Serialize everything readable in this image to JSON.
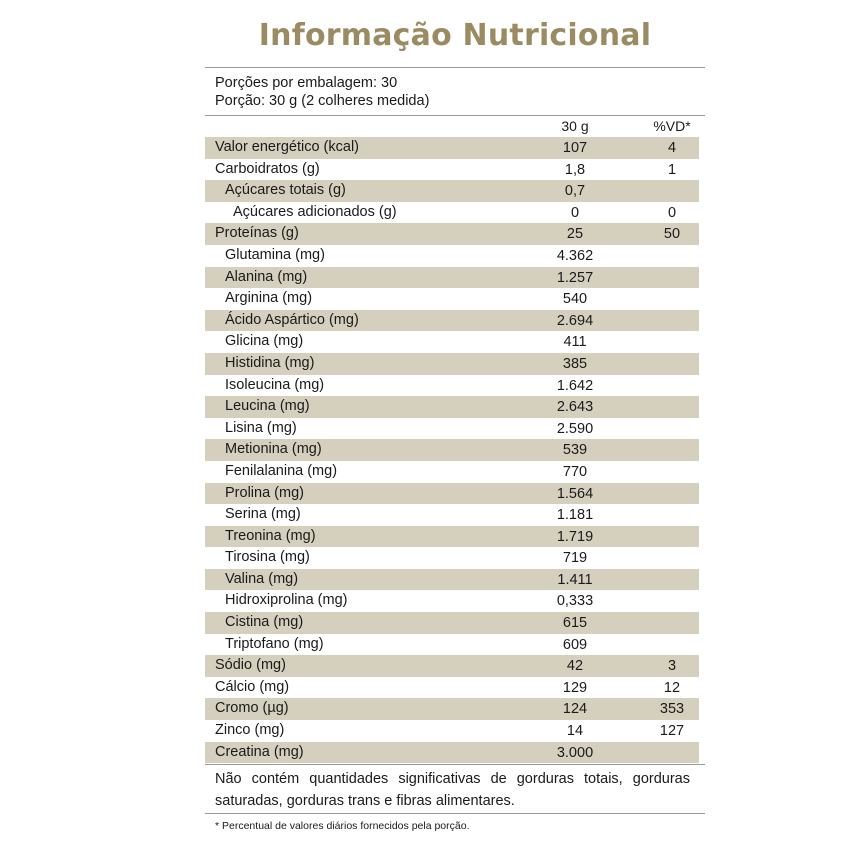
{
  "title": "Informação Nutricional",
  "servings_per_package": "Porções por embalagem: 30",
  "serving_size": "Porção: 30 g (2 colheres medida)",
  "column_headers": {
    "amount": "30 g",
    "dv": "%VD*"
  },
  "rows": [
    {
      "name": "Valor energético (kcal)",
      "value": "107",
      "dv": "4",
      "indent": 0,
      "shade": true
    },
    {
      "name": "Carboidratos (g)",
      "value": "1,8",
      "dv": "1",
      "indent": 0,
      "shade": false
    },
    {
      "name": "Açúcares totais (g)",
      "value": "0,7",
      "dv": "",
      "indent": 1,
      "shade": true
    },
    {
      "name": "Açúcares adicionados (g)",
      "value": "0",
      "dv": "0",
      "indent": 2,
      "shade": false
    },
    {
      "name": "Proteínas (g)",
      "value": "25",
      "dv": "50",
      "indent": 0,
      "shade": true
    },
    {
      "name": "Glutamina (mg)",
      "value": "4.362",
      "dv": "",
      "indent": 1,
      "shade": false
    },
    {
      "name": "Alanina (mg)",
      "value": "1.257",
      "dv": "",
      "indent": 1,
      "shade": true
    },
    {
      "name": "Arginina (mg)",
      "value": "540",
      "dv": "",
      "indent": 1,
      "shade": false
    },
    {
      "name": "Ácido Aspártico (mg)",
      "value": "2.694",
      "dv": "",
      "indent": 1,
      "shade": true
    },
    {
      "name": "Glicina (mg)",
      "value": "411",
      "dv": "",
      "indent": 1,
      "shade": false
    },
    {
      "name": "Histidina (mg)",
      "value": "385",
      "dv": "",
      "indent": 1,
      "shade": true
    },
    {
      "name": "Isoleucina (mg)",
      "value": "1.642",
      "dv": "",
      "indent": 1,
      "shade": false
    },
    {
      "name": "Leucina (mg)",
      "value": "2.643",
      "dv": "",
      "indent": 1,
      "shade": true
    },
    {
      "name": "Lisina (mg)",
      "value": "2.590",
      "dv": "",
      "indent": 1,
      "shade": false
    },
    {
      "name": "Metionina (mg)",
      "value": "539",
      "dv": "",
      "indent": 1,
      "shade": true
    },
    {
      "name": "Fenilalanina (mg)",
      "value": "770",
      "dv": "",
      "indent": 1,
      "shade": false
    },
    {
      "name": "Prolina (mg)",
      "value": "1.564",
      "dv": "",
      "indent": 1,
      "shade": true
    },
    {
      "name": "Serina (mg)",
      "value": "1.181",
      "dv": "",
      "indent": 1,
      "shade": false
    },
    {
      "name": "Treonina (mg)",
      "value": "1.719",
      "dv": "",
      "indent": 1,
      "shade": true
    },
    {
      "name": "Tirosina (mg)",
      "value": "719",
      "dv": "",
      "indent": 1,
      "shade": false
    },
    {
      "name": "Valina (mg)",
      "value": "1.411",
      "dv": "",
      "indent": 1,
      "shade": true
    },
    {
      "name": "Hidroxiprolina (mg)",
      "value": "0,333",
      "dv": "",
      "indent": 1,
      "shade": false
    },
    {
      "name": "Cistina (mg)",
      "value": "615",
      "dv": "",
      "indent": 1,
      "shade": true
    },
    {
      "name": "Triptofano (mg)",
      "value": "609",
      "dv": "",
      "indent": 1,
      "shade": false
    },
    {
      "name": "Sódio (mg)",
      "value": "42",
      "dv": "3",
      "indent": 0,
      "shade": true
    },
    {
      "name": "Cálcio (mg)",
      "value": "129",
      "dv": "12",
      "indent": 0,
      "shade": false
    },
    {
      "name": "Cromo (µg)",
      "value": "124",
      "dv": "353",
      "indent": 0,
      "shade": true
    },
    {
      "name": "Zinco (mg)",
      "value": "14",
      "dv": "127",
      "indent": 0,
      "shade": false
    },
    {
      "name": "Creatina (mg)",
      "value": "3.000",
      "dv": "",
      "indent": 0,
      "shade": true
    }
  ],
  "note": "Não contém quantidades significativas de gorduras totais, gorduras saturadas, gorduras trans e fibras alimentares.",
  "footnote": "* Percentual de valores diários fornecidos pela porção.",
  "colors": {
    "title": "#9a8b62",
    "shade": "#d5cfbd",
    "rule": "#9a9a9a"
  }
}
